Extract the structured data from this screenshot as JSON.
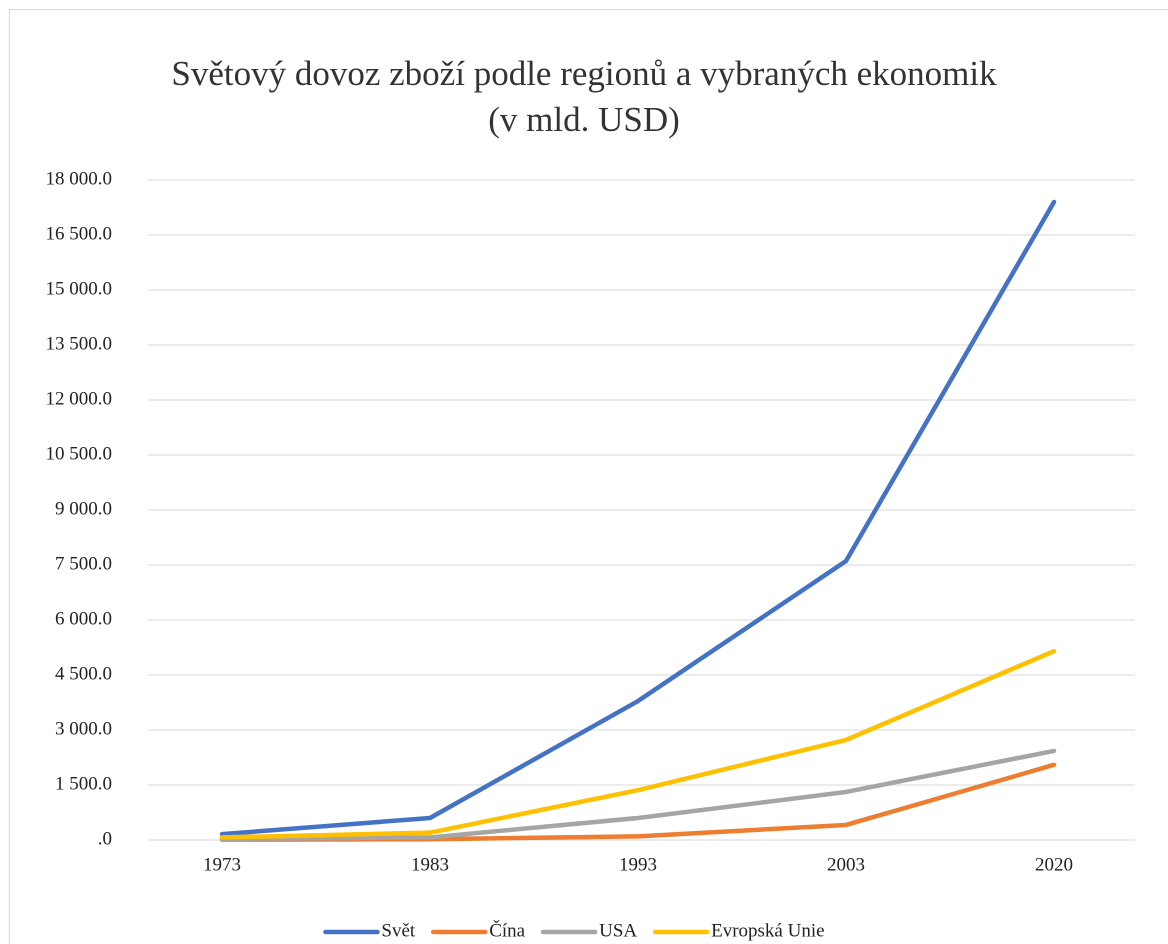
{
  "chart_data": {
    "type": "line",
    "title": [
      "Světový dovoz zboží podle regionů a vybraných ekonomik",
      "(v mld. USD)"
    ],
    "categories": [
      "1973",
      "1983",
      "1993",
      "2003",
      "2020"
    ],
    "series": [
      {
        "name": "Svět",
        "color": "#4472c4",
        "values": [
          160,
          600,
          3790,
          7610,
          17400
        ]
      },
      {
        "name": "Čína",
        "color": "#ed7d31",
        "values": [
          10,
          20,
          100,
          410,
          2050
        ]
      },
      {
        "name": "USA",
        "color": "#a5a5a5",
        "values": [
          30,
          70,
          600,
          1310,
          2430
        ]
      },
      {
        "name": "Evropská Unie",
        "color": "#ffc000",
        "values": [
          70,
          200,
          1360,
          2730,
          5150
        ]
      }
    ],
    "ylim": [
      0,
      18000
    ],
    "yticks": [
      {
        "value": 0,
        "label": ".0"
      },
      {
        "value": 1500,
        "label": "1 500.0"
      },
      {
        "value": 3000,
        "label": "3 000.0"
      },
      {
        "value": 4500,
        "label": "4 500.0"
      },
      {
        "value": 6000,
        "label": "6 000.0"
      },
      {
        "value": 7500,
        "label": "7 500.0"
      },
      {
        "value": 9000,
        "label": "9 000.0"
      },
      {
        "value": 10500,
        "label": "10 500.0"
      },
      {
        "value": 12000,
        "label": "12 000.0"
      },
      {
        "value": 13500,
        "label": "13 500.0"
      },
      {
        "value": 15000,
        "label": "15 000.0"
      },
      {
        "value": 16500,
        "label": "16 500.0"
      },
      {
        "value": 18000,
        "label": "18 000.0"
      }
    ],
    "grid": true,
    "legend": "bottom"
  }
}
